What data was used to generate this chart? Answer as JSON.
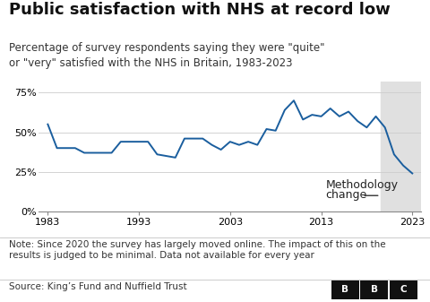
{
  "title": "Public satisfaction with NHS at record low",
  "subtitle": "Percentage of survey respondents saying they were \"quite\"\nor \"very\" satisfied with the NHS in Britain, 1983-2023",
  "note": "Note: Since 2020 the survey has largely moved online. The impact of this on the\nresults is judged to be minimal. Data not available for every year",
  "source": "Source: King’s Fund and Nuffield Trust",
  "line_color": "#1a5e9e",
  "shaded_start": 2019.5,
  "shaded_end": 2024,
  "shaded_color": "#e0e0e0",
  "methodology_label_line1": "Methodology",
  "methodology_label_line2": "change",
  "years": [
    1983,
    1984,
    1986,
    1987,
    1989,
    1990,
    1991,
    1993,
    1994,
    1995,
    1996,
    1997,
    1998,
    1999,
    2000,
    2001,
    2002,
    2003,
    2004,
    2005,
    2006,
    2007,
    2008,
    2009,
    2010,
    2011,
    2012,
    2013,
    2014,
    2015,
    2016,
    2017,
    2018,
    2019,
    2020,
    2021,
    2022,
    2023
  ],
  "values": [
    55,
    40,
    40,
    37,
    37,
    37,
    44,
    44,
    44,
    36,
    35,
    34,
    46,
    46,
    46,
    42,
    39,
    44,
    42,
    44,
    42,
    52,
    51,
    64,
    70,
    58,
    61,
    60,
    65,
    60,
    63,
    57,
    53,
    60,
    53,
    36,
    29,
    24
  ],
  "yticks": [
    0,
    25,
    50,
    75
  ],
  "ylim": [
    0,
    82
  ],
  "xticks": [
    1983,
    1993,
    2003,
    2013,
    2023
  ],
  "xlim": [
    1982,
    2024
  ],
  "background_color": "#ffffff",
  "title_fontsize": 13,
  "subtitle_fontsize": 8.5,
  "note_fontsize": 7.5,
  "source_fontsize": 7.5,
  "tick_fontsize": 8,
  "annot_fontsize": 9
}
